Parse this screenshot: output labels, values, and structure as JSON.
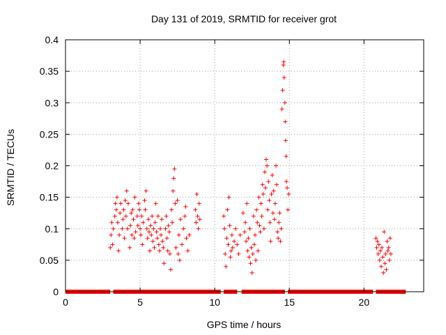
{
  "chart_data": {
    "type": "scatter",
    "title": "Day 131 of 2019, SRMTID for receiver grot",
    "xlabel": "GPS time / hours",
    "ylabel": "SRMTID / TECUs",
    "xlim": [
      0,
      24
    ],
    "ylim": [
      0,
      0.4
    ],
    "xticks": [
      0,
      5,
      10,
      15,
      20
    ],
    "yticks": [
      0,
      0.05,
      0.1,
      0.15,
      0.2,
      0.25,
      0.3,
      0.35,
      0.4
    ],
    "ytick_labels": [
      "0",
      "0.05",
      "0.1",
      "0.15",
      "0.2",
      "0.25",
      "0.3",
      "0.35",
      "0.4"
    ],
    "grid": true,
    "marker": "plus",
    "color": "#ff0000",
    "series": [
      {
        "values": [
          [
            3.0,
            0.07
          ],
          [
            3.05,
            0.09
          ],
          [
            3.1,
            0.11
          ],
          [
            3.15,
            0.075
          ],
          [
            3.2,
            0.1
          ],
          [
            3.3,
            0.12
          ],
          [
            3.35,
            0.14
          ],
          [
            3.4,
            0.13
          ],
          [
            3.45,
            0.15
          ],
          [
            3.5,
            0.11
          ],
          [
            3.55,
            0.065
          ],
          [
            3.6,
            0.09
          ],
          [
            3.65,
            0.125
          ],
          [
            3.7,
            0.14
          ],
          [
            3.8,
            0.1
          ],
          [
            3.85,
            0.115
          ],
          [
            3.9,
            0.13
          ],
          [
            3.95,
            0.085
          ],
          [
            4.0,
            0.145
          ],
          [
            4.05,
            0.12
          ],
          [
            4.1,
            0.16
          ],
          [
            4.15,
            0.1
          ],
          [
            4.2,
            0.14
          ],
          [
            4.3,
            0.07
          ],
          [
            4.35,
            0.105
          ],
          [
            4.4,
            0.125
          ],
          [
            4.45,
            0.09
          ],
          [
            4.5,
            0.13
          ],
          [
            4.55,
            0.115
          ],
          [
            4.6,
            0.085
          ],
          [
            4.65,
            0.15
          ],
          [
            4.7,
            0.095
          ],
          [
            4.8,
            0.12
          ],
          [
            4.85,
            0.105
          ],
          [
            4.9,
            0.14
          ],
          [
            4.95,
            0.13
          ],
          [
            5.0,
            0.1
          ],
          [
            5.05,
            0.09
          ],
          [
            5.1,
            0.12
          ],
          [
            5.15,
            0.075
          ],
          [
            5.2,
            0.11
          ],
          [
            5.3,
            0.145
          ],
          [
            5.35,
            0.13
          ],
          [
            5.4,
            0.16
          ],
          [
            5.45,
            0.1
          ],
          [
            5.5,
            0.085
          ],
          [
            5.55,
            0.115
          ],
          [
            5.6,
            0.095
          ],
          [
            5.65,
            0.065
          ],
          [
            5.7,
            0.105
          ],
          [
            5.75,
            0.09
          ],
          [
            5.8,
            0.12
          ],
          [
            5.85,
            0.08
          ],
          [
            5.9,
            0.1
          ],
          [
            5.95,
            0.07
          ],
          [
            6.0,
            0.11
          ],
          [
            6.05,
            0.14
          ],
          [
            6.1,
            0.095
          ],
          [
            6.15,
            0.085
          ],
          [
            6.2,
            0.12
          ],
          [
            6.25,
            0.075
          ],
          [
            6.3,
            0.065
          ],
          [
            6.35,
            0.1
          ],
          [
            6.4,
            0.09
          ],
          [
            6.45,
            0.115
          ],
          [
            6.5,
            0.08
          ],
          [
            6.55,
            0.07
          ],
          [
            6.6,
            0.045
          ],
          [
            6.7,
            0.1
          ],
          [
            6.75,
            0.12
          ],
          [
            6.8,
            0.085
          ],
          [
            6.85,
            0.065
          ],
          [
            6.9,
            0.105
          ],
          [
            6.95,
            0.095
          ],
          [
            7.0,
            0.06
          ],
          [
            7.05,
            0.035
          ],
          [
            7.1,
            0.13
          ],
          [
            7.15,
            0.11
          ],
          [
            7.2,
            0.16
          ],
          [
            7.25,
            0.18
          ],
          [
            7.3,
            0.195
          ],
          [
            7.35,
            0.14
          ],
          [
            7.4,
            0.07
          ],
          [
            7.5,
            0.145
          ],
          [
            7.55,
            0.06
          ],
          [
            7.6,
            0.09
          ],
          [
            7.65,
            0.05
          ],
          [
            7.7,
            0.115
          ],
          [
            7.8,
            0.075
          ],
          [
            7.9,
            0.1
          ],
          [
            8.0,
            0.12
          ],
          [
            8.05,
            0.135
          ],
          [
            8.1,
            0.085
          ],
          [
            8.2,
            0.065
          ],
          [
            8.3,
            0.09
          ],
          [
            8.7,
            0.13
          ],
          [
            8.75,
            0.11
          ],
          [
            8.8,
            0.155
          ],
          [
            8.85,
            0.12
          ],
          [
            8.9,
            0.1
          ],
          [
            8.95,
            0.14
          ],
          [
            9.0,
            0.115
          ],
          [
            10.6,
            0.12
          ],
          [
            10.65,
            0.1
          ],
          [
            10.7,
            0.06
          ],
          [
            10.75,
            0.04
          ],
          [
            10.8,
            0.085
          ],
          [
            10.85,
            0.13
          ],
          [
            10.9,
            0.075
          ],
          [
            10.95,
            0.15
          ],
          [
            11.0,
            0.105
          ],
          [
            11.05,
            0.055
          ],
          [
            11.1,
            0.065
          ],
          [
            11.15,
            0.09
          ],
          [
            11.2,
            0.07
          ],
          [
            11.3,
            0.08
          ],
          [
            11.4,
            0.1
          ],
          [
            11.5,
            0.075
          ],
          [
            11.6,
            0.06
          ],
          [
            11.7,
            0.09
          ],
          [
            11.9,
            0.125
          ],
          [
            12.0,
            0.095
          ],
          [
            12.05,
            0.11
          ],
          [
            12.1,
            0.08
          ],
          [
            12.15,
            0.14
          ],
          [
            12.2,
            0.065
          ],
          [
            12.25,
            0.085
          ],
          [
            12.3,
            0.055
          ],
          [
            12.35,
            0.1
          ],
          [
            12.4,
            0.045
          ],
          [
            12.45,
            0.07
          ],
          [
            12.5,
            0.03
          ],
          [
            12.55,
            0.06
          ],
          [
            12.6,
            0.12
          ],
          [
            12.65,
            0.075
          ],
          [
            12.7,
            0.09
          ],
          [
            12.75,
            0.05
          ],
          [
            12.8,
            0.13
          ],
          [
            12.85,
            0.11
          ],
          [
            12.9,
            0.065
          ],
          [
            12.95,
            0.15
          ],
          [
            13.0,
            0.105
          ],
          [
            13.05,
            0.095
          ],
          [
            13.1,
            0.14
          ],
          [
            13.15,
            0.12
          ],
          [
            13.2,
            0.17
          ],
          [
            13.25,
            0.155
          ],
          [
            13.3,
            0.1
          ],
          [
            13.35,
            0.19
          ],
          [
            13.4,
            0.165
          ],
          [
            13.45,
            0.21
          ],
          [
            13.5,
            0.2
          ],
          [
            13.55,
            0.13
          ],
          [
            13.6,
            0.175
          ],
          [
            13.65,
            0.145
          ],
          [
            13.7,
            0.11
          ],
          [
            13.75,
            0.08
          ],
          [
            13.8,
            0.155
          ],
          [
            13.85,
            0.185
          ],
          [
            13.9,
            0.125
          ],
          [
            13.95,
            0.16
          ],
          [
            14.0,
            0.115
          ],
          [
            14.05,
            0.14
          ],
          [
            14.1,
            0.2
          ],
          [
            14.15,
            0.17
          ],
          [
            14.2,
            0.095
          ],
          [
            14.25,
            0.085
          ],
          [
            14.3,
            0.11
          ],
          [
            14.35,
            0.125
          ],
          [
            14.4,
            0.08
          ],
          [
            14.45,
            0.1
          ],
          [
            14.5,
            0.29
          ],
          [
            14.55,
            0.32
          ],
          [
            14.6,
            0.36
          ],
          [
            14.62,
            0.365
          ],
          [
            14.65,
            0.34
          ],
          [
            14.7,
            0.3
          ],
          [
            14.72,
            0.27
          ],
          [
            14.75,
            0.24
          ],
          [
            14.78,
            0.215
          ],
          [
            14.8,
            0.175
          ],
          [
            14.85,
            0.165
          ],
          [
            14.9,
            0.13
          ],
          [
            14.95,
            0.155
          ],
          [
            20.8,
            0.085
          ],
          [
            20.85,
            0.07
          ],
          [
            20.9,
            0.08
          ],
          [
            20.95,
            0.06
          ],
          [
            21.0,
            0.075
          ],
          [
            21.05,
            0.05
          ],
          [
            21.1,
            0.065
          ],
          [
            21.15,
            0.04
          ],
          [
            21.2,
            0.07
          ],
          [
            21.25,
            0.055
          ],
          [
            21.3,
            0.03
          ],
          [
            21.35,
            0.095
          ],
          [
            21.4,
            0.045
          ],
          [
            21.45,
            0.06
          ],
          [
            21.5,
            0.035
          ],
          [
            21.55,
            0.08
          ],
          [
            21.6,
            0.065
          ],
          [
            21.65,
            0.07
          ],
          [
            21.7,
            0.05
          ],
          [
            21.75,
            0.085
          ],
          [
            21.8,
            0.06
          ]
        ]
      }
    ],
    "baseline": {
      "y": 0,
      "segments": [
        [
          0.0,
          3.0
        ],
        [
          3.2,
          10.4
        ],
        [
          10.6,
          11.5
        ],
        [
          11.8,
          14.7
        ],
        [
          14.9,
          20.6
        ],
        [
          20.8,
          22.8
        ]
      ]
    }
  }
}
